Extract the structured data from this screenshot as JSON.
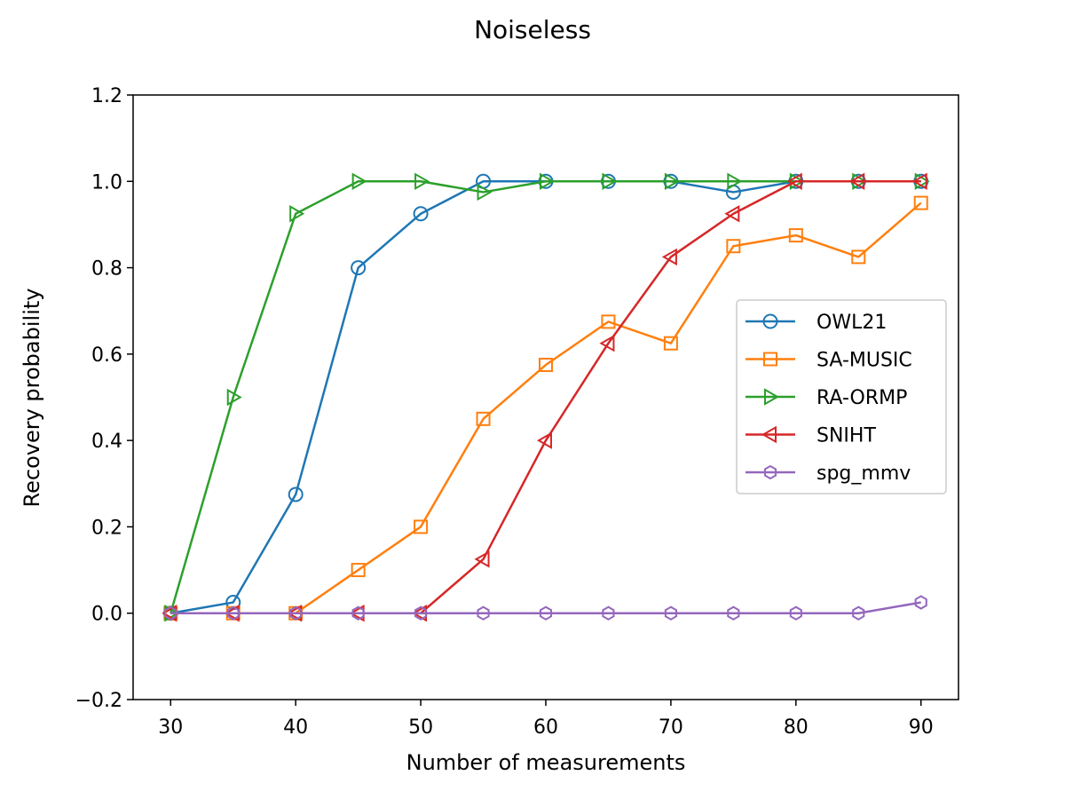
{
  "chart_data": {
    "type": "line",
    "title": "Noiseless",
    "xlabel": "Number of measurements",
    "ylabel": "Recovery probability",
    "x": [
      30,
      35,
      40,
      45,
      50,
      55,
      60,
      65,
      70,
      75,
      80,
      85,
      90
    ],
    "xlim": [
      27,
      93
    ],
    "ylim": [
      -0.2,
      1.2
    ],
    "xticks": [
      30,
      40,
      50,
      60,
      70,
      80,
      90
    ],
    "yticks": [
      -0.2,
      0.0,
      0.2,
      0.4,
      0.6,
      0.8,
      1.0,
      1.2
    ],
    "ytick_labels": [
      "−0.2",
      "0.0",
      "0.2",
      "0.4",
      "0.6",
      "0.8",
      "1.0",
      "1.2"
    ],
    "grid": false,
    "legend_position": "center-right",
    "series": [
      {
        "name": "OWL21",
        "color": "#1f77b4",
        "marker": "circle",
        "values": [
          0.0,
          0.025,
          0.275,
          0.8,
          0.925,
          1.0,
          1.0,
          1.0,
          1.0,
          0.975,
          1.0,
          1.0,
          1.0
        ]
      },
      {
        "name": "SA-MUSIC",
        "color": "#ff7f0e",
        "marker": "square",
        "values": [
          0.0,
          0.0,
          0.0,
          0.1,
          0.2,
          0.45,
          0.575,
          0.675,
          0.625,
          0.85,
          0.875,
          0.825,
          0.95
        ]
      },
      {
        "name": "RA-ORMP",
        "color": "#2ca02c",
        "marker": "triangle-right",
        "values": [
          0.0,
          0.5,
          0.925,
          1.0,
          1.0,
          0.975,
          1.0,
          1.0,
          1.0,
          1.0,
          1.0,
          1.0,
          1.0
        ]
      },
      {
        "name": "SNIHT",
        "color": "#d62728",
        "marker": "triangle-left",
        "values": [
          0.0,
          0.0,
          0.0,
          0.0,
          0.0,
          0.125,
          0.4,
          0.625,
          0.825,
          0.925,
          1.0,
          1.0,
          1.0
        ]
      },
      {
        "name": "spg_mmv",
        "color": "#9467bd",
        "marker": "hexagon",
        "values": [
          0.0,
          0.0,
          0.0,
          0.0,
          0.0,
          0.0,
          0.0,
          0.0,
          0.0,
          0.0,
          0.0,
          0.0,
          0.025
        ]
      }
    ]
  }
}
